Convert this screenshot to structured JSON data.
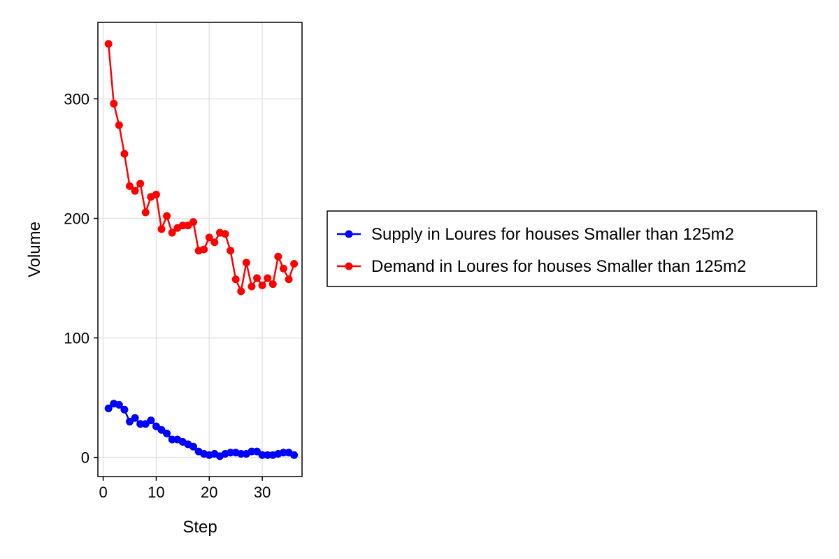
{
  "chart_data": {
    "type": "line",
    "title": "",
    "xlabel": "Step",
    "ylabel": "Volume",
    "xlim": [
      -1,
      37.5
    ],
    "ylim": [
      -16,
      364
    ],
    "xticks": [
      0,
      10,
      20,
      30
    ],
    "yticks": [
      0,
      100,
      200,
      300
    ],
    "grid": true,
    "legend_position": "right",
    "x": [
      1,
      2,
      3,
      4,
      5,
      6,
      7,
      8,
      9,
      10,
      11,
      12,
      13,
      14,
      15,
      16,
      17,
      18,
      19,
      20,
      21,
      22,
      23,
      24,
      25,
      26,
      27,
      28,
      29,
      30,
      31,
      32,
      33,
      34,
      35,
      36
    ],
    "series": [
      {
        "name": "Supply in Loures for houses Smaller than 125m2",
        "color": "#0000ff",
        "values": [
          41,
          45,
          44,
          40,
          30,
          33,
          28,
          28,
          31,
          26,
          23,
          20,
          15,
          15,
          13,
          11,
          9,
          5,
          3,
          2,
          3,
          1,
          3,
          4,
          4,
          3,
          3,
          5,
          5,
          2,
          2,
          2,
          3,
          4,
          4,
          2
        ]
      },
      {
        "name": "Demand in Loures for houses Smaller than 125m2",
        "color": "#ff0000",
        "values": [
          346,
          296,
          278,
          254,
          227,
          223,
          229,
          205,
          218,
          220,
          191,
          202,
          188,
          192,
          194,
          194,
          197,
          173,
          174,
          184,
          180,
          188,
          187,
          173,
          149,
          139,
          163,
          143,
          150,
          144,
          150,
          145,
          168,
          158,
          149,
          162
        ]
      }
    ]
  }
}
